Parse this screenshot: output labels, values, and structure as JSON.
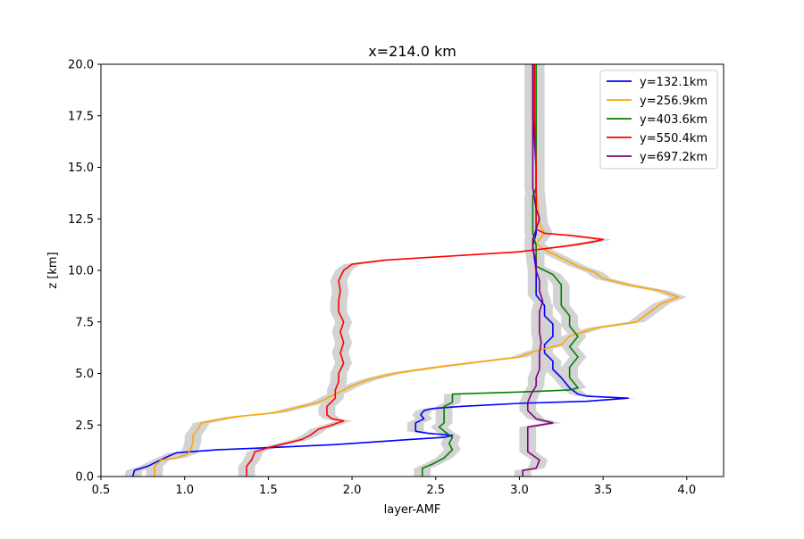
{
  "chart_data": {
    "type": "line",
    "title": "x=214.0 km",
    "xlabel": "layer-AMF",
    "ylabel": "z [km]",
    "xlim": [
      0.5,
      4.22
    ],
    "ylim": [
      0,
      20
    ],
    "x_ticks": [
      "0.5",
      "1.0",
      "1.5",
      "2.0",
      "2.5",
      "3.0",
      "3.5",
      "4.0"
    ],
    "y_ticks": [
      "0.0",
      "2.5",
      "5.0",
      "7.5",
      "10.0",
      "12.5",
      "15.0",
      "17.5",
      "20.0"
    ],
    "grid": false,
    "legend_position": "top-right",
    "band_color": "#d3d3d3",
    "series": [
      {
        "name": "y=132.1km",
        "color": "#0000ff",
        "points": [
          [
            0.69,
            0
          ],
          [
            0.7,
            0.3
          ],
          [
            0.78,
            0.5
          ],
          [
            0.88,
            0.9
          ],
          [
            0.95,
            1.15
          ],
          [
            1.2,
            1.3
          ],
          [
            1.5,
            1.4
          ],
          [
            1.9,
            1.55
          ],
          [
            2.35,
            1.8
          ],
          [
            2.55,
            1.9
          ],
          [
            2.6,
            2.0
          ],
          [
            2.45,
            2.1
          ],
          [
            2.38,
            2.2
          ],
          [
            2.38,
            2.6
          ],
          [
            2.43,
            2.8
          ],
          [
            2.41,
            3.0
          ],
          [
            2.43,
            3.2
          ],
          [
            2.48,
            3.3
          ],
          [
            2.65,
            3.4
          ],
          [
            3.0,
            3.55
          ],
          [
            3.4,
            3.65
          ],
          [
            3.65,
            3.8
          ],
          [
            3.4,
            3.9
          ],
          [
            3.35,
            4.0
          ],
          [
            3.3,
            4.3
          ],
          [
            3.25,
            4.8
          ],
          [
            3.2,
            5.2
          ],
          [
            3.2,
            5.6
          ],
          [
            3.15,
            6.0
          ],
          [
            3.15,
            6.4
          ],
          [
            3.2,
            6.8
          ],
          [
            3.2,
            7.4
          ],
          [
            3.15,
            7.8
          ],
          [
            3.15,
            8.3
          ],
          [
            3.1,
            8.8
          ],
          [
            3.1,
            9.4
          ],
          [
            3.1,
            10.0
          ],
          [
            3.09,
            10.6
          ],
          [
            3.08,
            11.2
          ],
          [
            3.1,
            11.8
          ],
          [
            3.1,
            12.5
          ],
          [
            3.1,
            15.0
          ],
          [
            3.08,
            17.5
          ],
          [
            3.08,
            20.0
          ]
        ]
      },
      {
        "name": "y=256.9km",
        "color": "#ffa500",
        "points": [
          [
            0.82,
            0
          ],
          [
            0.82,
            0.5
          ],
          [
            0.86,
            0.8
          ],
          [
            0.95,
            0.9
          ],
          [
            1.02,
            1.1
          ],
          [
            1.04,
            1.4
          ],
          [
            1.05,
            1.7
          ],
          [
            1.05,
            2.0
          ],
          [
            1.08,
            2.3
          ],
          [
            1.1,
            2.6
          ],
          [
            1.3,
            2.9
          ],
          [
            1.55,
            3.1
          ],
          [
            1.65,
            3.3
          ],
          [
            1.8,
            3.6
          ],
          [
            1.9,
            4.0
          ],
          [
            2.0,
            4.4
          ],
          [
            2.1,
            4.7
          ],
          [
            2.25,
            5.0
          ],
          [
            2.5,
            5.3
          ],
          [
            2.8,
            5.6
          ],
          [
            3.0,
            5.8
          ],
          [
            3.1,
            6.1
          ],
          [
            3.25,
            6.4
          ],
          [
            3.3,
            6.8
          ],
          [
            3.45,
            7.2
          ],
          [
            3.7,
            7.5
          ],
          [
            3.75,
            7.8
          ],
          [
            3.8,
            8.1
          ],
          [
            3.85,
            8.4
          ],
          [
            3.95,
            8.7
          ],
          [
            3.85,
            9.0
          ],
          [
            3.65,
            9.3
          ],
          [
            3.5,
            9.6
          ],
          [
            3.45,
            9.9
          ],
          [
            3.35,
            10.2
          ],
          [
            3.25,
            10.6
          ],
          [
            3.15,
            11.0
          ],
          [
            3.1,
            11.3
          ],
          [
            3.15,
            11.8
          ],
          [
            3.12,
            12.3
          ],
          [
            3.1,
            14.0
          ],
          [
            3.1,
            17.0
          ],
          [
            3.09,
            20.0
          ]
        ]
      },
      {
        "name": "y=403.6km",
        "color": "#008000",
        "points": [
          [
            2.42,
            0
          ],
          [
            2.42,
            0.4
          ],
          [
            2.48,
            0.6
          ],
          [
            2.55,
            0.9
          ],
          [
            2.6,
            1.3
          ],
          [
            2.58,
            1.6
          ],
          [
            2.6,
            1.9
          ],
          [
            2.55,
            2.2
          ],
          [
            2.52,
            2.4
          ],
          [
            2.55,
            2.6
          ],
          [
            2.55,
            3.0
          ],
          [
            2.55,
            3.4
          ],
          [
            2.6,
            3.6
          ],
          [
            2.6,
            4.0
          ],
          [
            3.0,
            4.1
          ],
          [
            3.3,
            4.2
          ],
          [
            3.35,
            4.3
          ],
          [
            3.3,
            4.8
          ],
          [
            3.3,
            5.3
          ],
          [
            3.35,
            5.8
          ],
          [
            3.3,
            6.3
          ],
          [
            3.35,
            6.8
          ],
          [
            3.3,
            7.3
          ],
          [
            3.3,
            7.8
          ],
          [
            3.25,
            8.3
          ],
          [
            3.25,
            8.8
          ],
          [
            3.25,
            9.3
          ],
          [
            3.2,
            9.8
          ],
          [
            3.1,
            10.2
          ],
          [
            3.1,
            10.6
          ],
          [
            3.1,
            11.2
          ],
          [
            3.08,
            11.8
          ],
          [
            3.08,
            12.8
          ],
          [
            3.08,
            13.6
          ],
          [
            3.1,
            14.0
          ],
          [
            3.1,
            17.5
          ],
          [
            3.1,
            20.0
          ]
        ]
      },
      {
        "name": "y=550.4km",
        "color": "#ff0000",
        "points": [
          [
            1.37,
            0
          ],
          [
            1.37,
            0.5
          ],
          [
            1.4,
            0.8
          ],
          [
            1.42,
            1.2
          ],
          [
            1.5,
            1.4
          ],
          [
            1.6,
            1.6
          ],
          [
            1.7,
            1.8
          ],
          [
            1.75,
            2.0
          ],
          [
            1.8,
            2.3
          ],
          [
            1.88,
            2.5
          ],
          [
            1.95,
            2.7
          ],
          [
            1.88,
            2.8
          ],
          [
            1.85,
            3.0
          ],
          [
            1.85,
            3.4
          ],
          [
            1.9,
            3.8
          ],
          [
            1.9,
            4.2
          ],
          [
            1.92,
            4.6
          ],
          [
            1.92,
            5.0
          ],
          [
            1.95,
            5.5
          ],
          [
            1.93,
            6.0
          ],
          [
            1.95,
            6.5
          ],
          [
            1.93,
            7.0
          ],
          [
            1.95,
            7.5
          ],
          [
            1.92,
            8.0
          ],
          [
            1.92,
            8.5
          ],
          [
            1.93,
            9.0
          ],
          [
            1.92,
            9.5
          ],
          [
            1.95,
            10.0
          ],
          [
            2.0,
            10.3
          ],
          [
            2.2,
            10.5
          ],
          [
            2.6,
            10.7
          ],
          [
            3.0,
            10.9
          ],
          [
            3.3,
            11.2
          ],
          [
            3.45,
            11.4
          ],
          [
            3.5,
            11.5
          ],
          [
            3.3,
            11.7
          ],
          [
            3.15,
            11.8
          ],
          [
            3.1,
            12.0
          ],
          [
            3.1,
            15.0
          ],
          [
            3.09,
            17.5
          ],
          [
            3.09,
            20.0
          ]
        ]
      },
      {
        "name": "y=697.2km",
        "color": "#800080",
        "points": [
          [
            3.02,
            0
          ],
          [
            3.02,
            0.3
          ],
          [
            3.1,
            0.4
          ],
          [
            3.12,
            0.8
          ],
          [
            3.05,
            1.2
          ],
          [
            3.05,
            1.6
          ],
          [
            3.05,
            2.0
          ],
          [
            3.05,
            2.4
          ],
          [
            3.2,
            2.6
          ],
          [
            3.1,
            2.8
          ],
          [
            3.05,
            3.2
          ],
          [
            3.05,
            3.6
          ],
          [
            3.07,
            4.0
          ],
          [
            3.1,
            4.4
          ],
          [
            3.1,
            4.8
          ],
          [
            3.12,
            5.2
          ],
          [
            3.12,
            5.6
          ],
          [
            3.12,
            6.0
          ],
          [
            3.13,
            6.5
          ],
          [
            3.12,
            7.0
          ],
          [
            3.12,
            7.5
          ],
          [
            3.12,
            8.0
          ],
          [
            3.14,
            8.5
          ],
          [
            3.12,
            9.0
          ],
          [
            3.12,
            9.5
          ],
          [
            3.1,
            10.0
          ],
          [
            3.1,
            10.5
          ],
          [
            3.08,
            11.0
          ],
          [
            3.08,
            11.5
          ],
          [
            3.1,
            12.0
          ],
          [
            3.12,
            12.5
          ],
          [
            3.1,
            13.0
          ],
          [
            3.08,
            14.0
          ],
          [
            3.08,
            17.5
          ],
          [
            3.08,
            20.0
          ]
        ]
      }
    ]
  }
}
